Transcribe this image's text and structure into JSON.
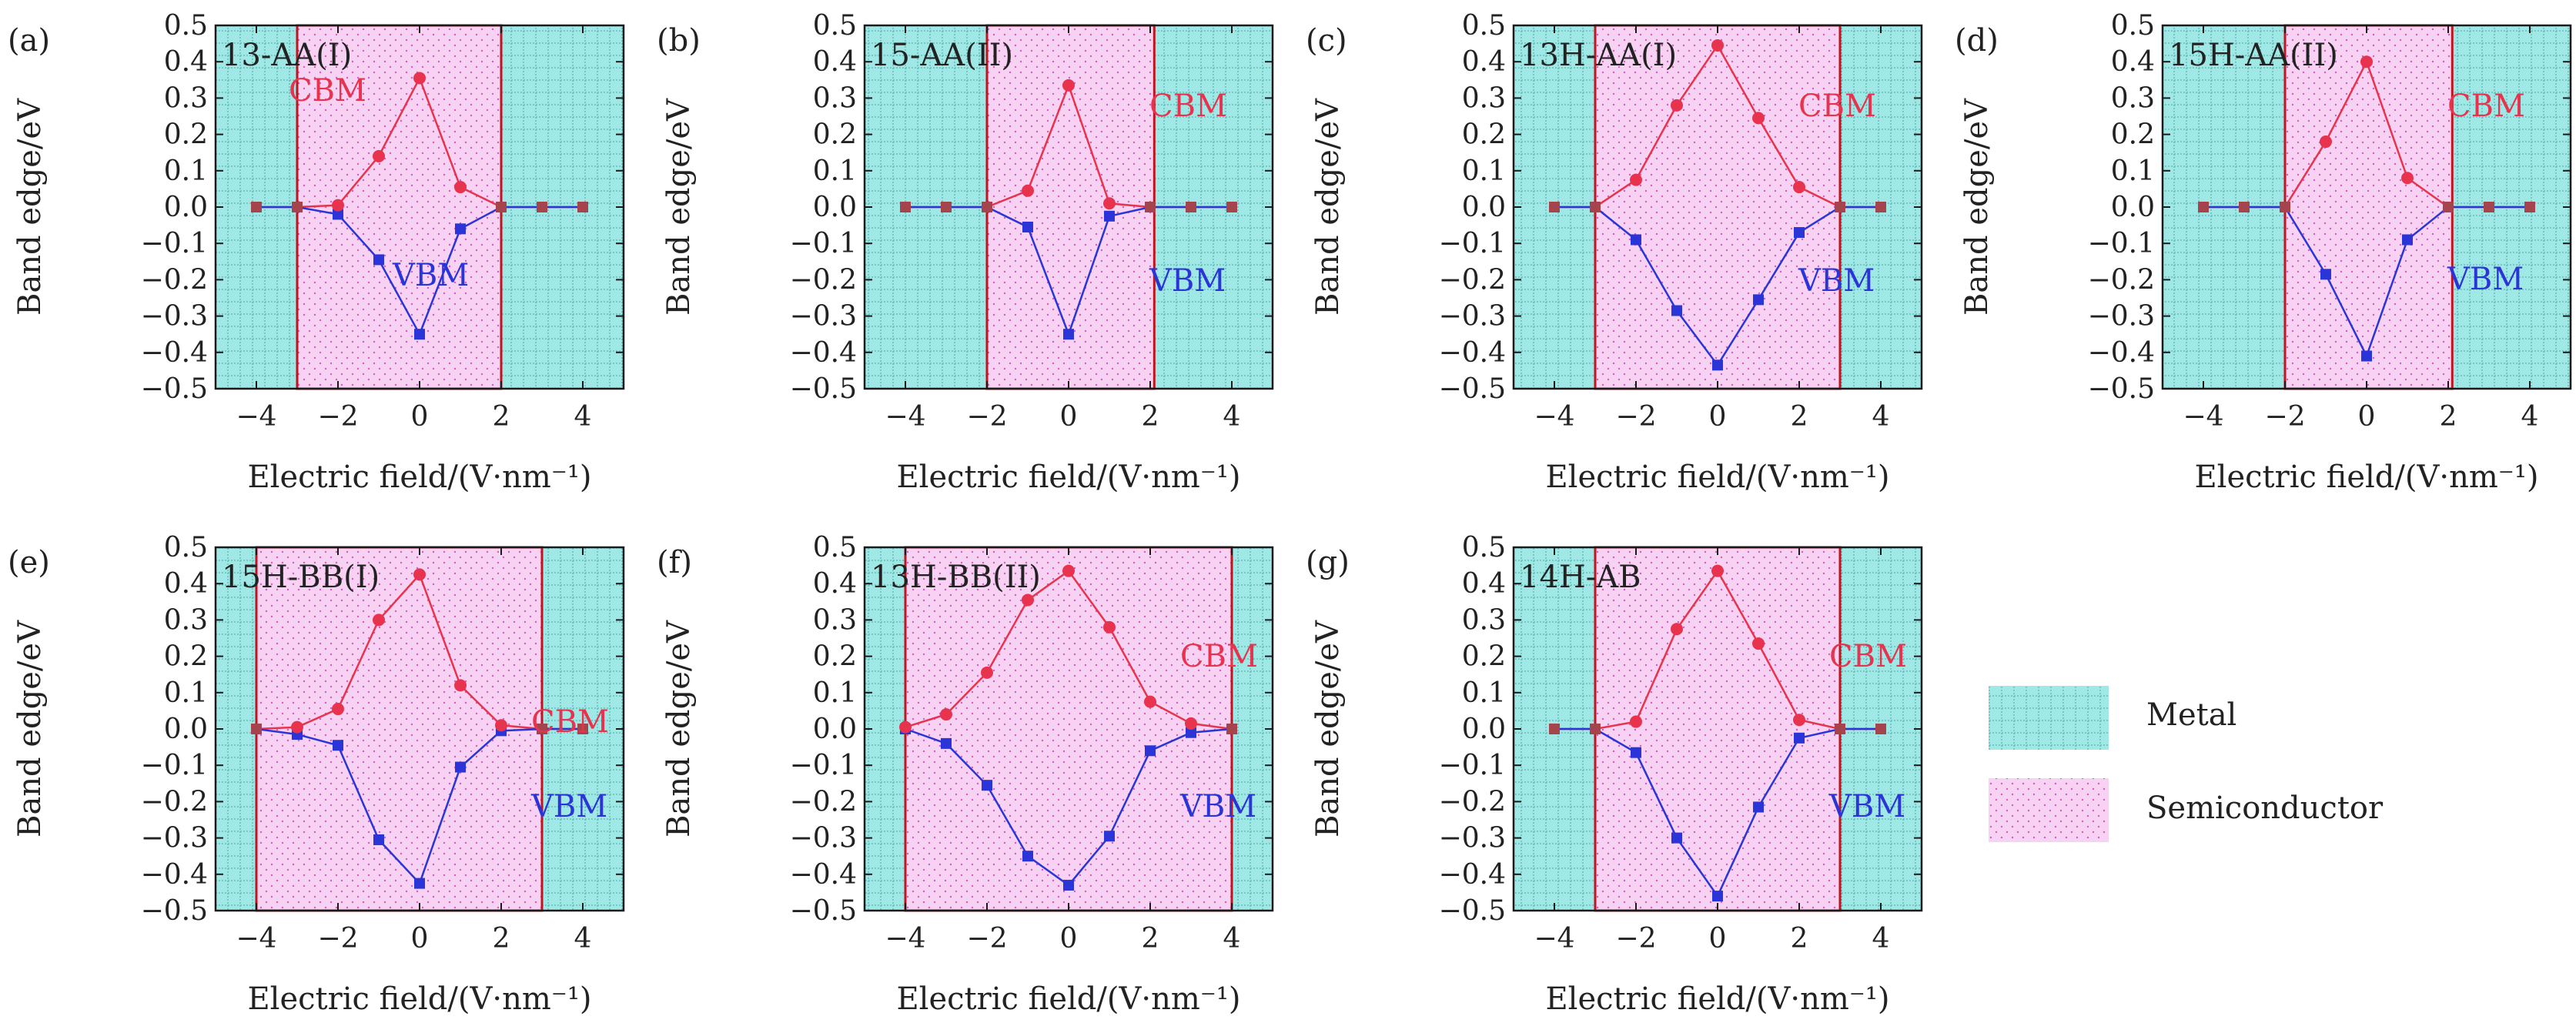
{
  "figure": {
    "x_axis_label": "Electric field/(V·nm⁻¹)",
    "y_axis_label": "Band edge/eV",
    "x_ticks": [
      -4,
      -2,
      0,
      2,
      4
    ],
    "y_ticks": [
      "−0.5",
      "−0.4",
      "−0.3",
      "−0.2",
      "−0.1",
      "0.0",
      "0.1",
      "0.2",
      "0.3",
      "0.4",
      "0.5"
    ],
    "cbm_label": "CBM",
    "vbm_label": "VBM",
    "legend": {
      "metal": "Metal",
      "semiconductor": "Semiconductor",
      "placement": "right"
    }
  },
  "colors": {
    "metal_fill": "#9fe8e6",
    "semiconductor_fill": "#f7d2f2",
    "cbm": "#e8334f",
    "vbm": "#2b34d6",
    "region_border": "#c0141e",
    "metallic_point": "#a6444d"
  },
  "chart_data": [
    {
      "type": "line",
      "panel": "(a)",
      "name": "13-AA(I)",
      "xlim": [
        -5,
        5
      ],
      "ylim": [
        -0.5,
        0.5
      ],
      "semiconductor_range": [
        -3,
        2
      ],
      "x": [
        -4,
        -3,
        -2,
        -1,
        0,
        1,
        2,
        3,
        4
      ],
      "series": [
        {
          "name": "CBM",
          "values": [
            0,
            0,
            0.005,
            0.14,
            0.355,
            0.055,
            0,
            0,
            0
          ]
        },
        {
          "name": "VBM",
          "values": [
            0,
            0,
            -0.02,
            -0.145,
            -0.35,
            -0.06,
            0,
            0,
            0
          ]
        }
      ]
    },
    {
      "type": "line",
      "panel": "(b)",
      "name": "15-AA(II)",
      "xlim": [
        -5,
        5
      ],
      "ylim": [
        -0.5,
        0.5
      ],
      "semiconductor_range": [
        -2,
        2.1
      ],
      "x": [
        -4,
        -3,
        -2,
        -1,
        0,
        1,
        2,
        3,
        4
      ],
      "series": [
        {
          "name": "CBM",
          "values": [
            0,
            0,
            0,
            0.045,
            0.335,
            0.01,
            0,
            0,
            0
          ]
        },
        {
          "name": "VBM",
          "values": [
            0,
            0,
            0,
            -0.055,
            -0.35,
            -0.025,
            0,
            0,
            0
          ]
        }
      ]
    },
    {
      "type": "line",
      "panel": "(c)",
      "name": "13H-AA(I)",
      "xlim": [
        -5,
        5
      ],
      "ylim": [
        -0.5,
        0.5
      ],
      "semiconductor_range": [
        -3,
        3
      ],
      "x": [
        -4,
        -3,
        -2,
        -1,
        0,
        1,
        2,
        3,
        4
      ],
      "series": [
        {
          "name": "CBM",
          "values": [
            0,
            0,
            0.075,
            0.28,
            0.445,
            0.245,
            0.055,
            0,
            0
          ]
        },
        {
          "name": "VBM",
          "values": [
            0,
            0,
            -0.09,
            -0.285,
            -0.435,
            -0.255,
            -0.07,
            0,
            0
          ]
        }
      ]
    },
    {
      "type": "line",
      "panel": "(d)",
      "name": "15H-AA(II)",
      "xlim": [
        -5,
        5
      ],
      "ylim": [
        -0.5,
        0.5
      ],
      "semiconductor_range": [
        -2,
        2.1
      ],
      "x": [
        -4,
        -3,
        -2,
        -1,
        0,
        1,
        2,
        3,
        4
      ],
      "series": [
        {
          "name": "CBM",
          "values": [
            0,
            0,
            0,
            0.18,
            0.4,
            0.08,
            0,
            0,
            0
          ]
        },
        {
          "name": "VBM",
          "values": [
            0,
            0,
            0,
            -0.185,
            -0.41,
            -0.09,
            0,
            0,
            0
          ]
        }
      ]
    },
    {
      "type": "line",
      "panel": "(e)",
      "name": "15H-BB(I)",
      "xlim": [
        -5,
        5
      ],
      "ylim": [
        -0.5,
        0.5
      ],
      "semiconductor_range": [
        -4,
        3
      ],
      "x": [
        -4,
        -3,
        -2,
        -1,
        0,
        1,
        2,
        3,
        4
      ],
      "series": [
        {
          "name": "CBM",
          "values": [
            0,
            0.005,
            0.055,
            0.3,
            0.425,
            0.12,
            0.01,
            0,
            0
          ]
        },
        {
          "name": "VBM",
          "values": [
            0,
            -0.015,
            -0.045,
            -0.305,
            -0.425,
            -0.105,
            -0.005,
            0,
            0
          ]
        }
      ]
    },
    {
      "type": "line",
      "panel": "(f)",
      "name": "13H-BB(II)",
      "xlim": [
        -5,
        5
      ],
      "ylim": [
        -0.5,
        0.5
      ],
      "semiconductor_range": [
        -4,
        4
      ],
      "x": [
        -4,
        -3,
        -2,
        -1,
        0,
        1,
        2,
        3,
        4
      ],
      "series": [
        {
          "name": "CBM",
          "values": [
            0.005,
            0.04,
            0.155,
            0.355,
            0.435,
            0.28,
            0.075,
            0.015,
            0
          ]
        },
        {
          "name": "VBM",
          "values": [
            0,
            -0.04,
            -0.155,
            -0.35,
            -0.43,
            -0.295,
            -0.06,
            -0.01,
            0
          ]
        }
      ]
    },
    {
      "type": "line",
      "panel": "(g)",
      "name": "14H-AB",
      "xlim": [
        -5,
        5
      ],
      "ylim": [
        -0.5,
        0.5
      ],
      "semiconductor_range": [
        -3,
        3
      ],
      "x": [
        -4,
        -3,
        -2,
        -1,
        0,
        1,
        2,
        3,
        4
      ],
      "series": [
        {
          "name": "CBM",
          "values": [
            0,
            0,
            0.02,
            0.275,
            0.435,
            0.235,
            0.025,
            0,
            0
          ]
        },
        {
          "name": "VBM",
          "values": [
            0,
            0,
            -0.065,
            -0.3,
            -0.46,
            -0.215,
            -0.025,
            0,
            0
          ]
        }
      ]
    }
  ]
}
